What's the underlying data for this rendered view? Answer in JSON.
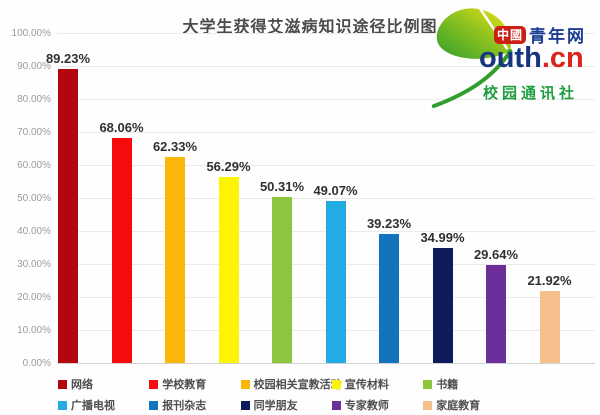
{
  "chart_data": {
    "type": "bar",
    "title": "大学生获得艾滋病知识途径比例图",
    "categories": [
      "网络",
      "学校教育",
      "校园相关宣教活动",
      "宣传材料",
      "书籍",
      "广播电视",
      "报刊杂志",
      "同学朋友",
      "专家教师",
      "家庭教育"
    ],
    "values": [
      89.23,
      68.06,
      62.33,
      56.29,
      50.31,
      49.07,
      39.23,
      34.99,
      29.64,
      21.92
    ],
    "value_labels": [
      "89.23%",
      "68.06%",
      "62.33%",
      "56.29%",
      "50.31%",
      "49.07%",
      "39.23%",
      "34.99%",
      "29.64%",
      "21.92%"
    ],
    "bar_colors": [
      "#b2070f",
      "#f60c0c",
      "#fbb705",
      "#fdf403",
      "#8cc63f",
      "#23ace3",
      "#1374bd",
      "#0d1b5c",
      "#6c2f9a",
      "#f5c08c"
    ],
    "xlabel": "",
    "ylabel": "",
    "ylim": [
      0,
      100
    ],
    "ytick_labels": [
      "100.00%",
      "90.00%",
      "80.00%",
      "70.00%",
      "60.00%",
      "50.00%",
      "40.00%",
      "30.00%",
      "20.00%",
      "10.00%",
      "0.00%"
    ],
    "grid": true,
    "legend_position": "bottom",
    "legend_rows": 2
  },
  "logo": {
    "badge": "中國",
    "site_name": "青年网",
    "domain_blue": "outh",
    "domain_red": ".cn",
    "subtitle": "校园通讯社",
    "colors": {
      "badge_bg": "#cc2017",
      "site_name": "#1c3e92",
      "domain_blue": "#17347f",
      "domain_red": "#dc241c",
      "subtitle": "#1e9e3e",
      "leaf_green": "#2f9e2c",
      "leaf_yellow": "#f2e314"
    }
  }
}
